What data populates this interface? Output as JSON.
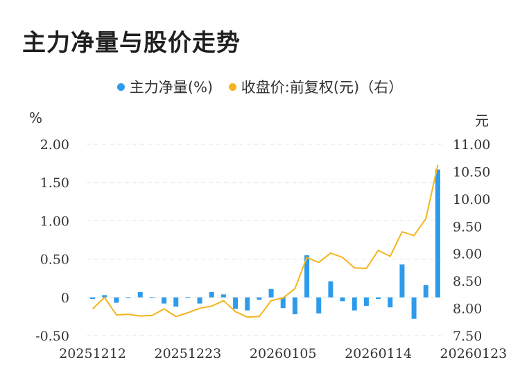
{
  "title": "主力净量与股价走势",
  "legend": {
    "left_label": "主力净量(%)",
    "right_label": "收盘价:前复权(元)（右）"
  },
  "units": {
    "left": "%",
    "right": "元"
  },
  "colors": {
    "bar": "#2e9bea",
    "line": "#f5b51b",
    "grid": "#e3e3e3"
  },
  "chart_data": {
    "type": "bar+line",
    "title": "主力净量与股价走势",
    "left_axis": {
      "unit": "%",
      "ticks": [
        "-0.50",
        "0",
        "0.50",
        "1.00",
        "1.50",
        "2.00"
      ],
      "ylim": [
        -0.5,
        2.0
      ]
    },
    "right_axis": {
      "unit": "元",
      "ticks": [
        "7.50",
        "8.00",
        "8.50",
        "9.00",
        "9.50",
        "10.00",
        "10.50",
        "11.00"
      ],
      "ylim": [
        7.5,
        11.0
      ]
    },
    "x_ticks": [
      "20251212",
      "20251223",
      "20260105",
      "20260114",
      "20260123"
    ],
    "x_tick_index": [
      0,
      8,
      16,
      24,
      32
    ],
    "grid": true,
    "legend_position": "top",
    "series": [
      {
        "name": "主力净量(%)",
        "kind": "bar",
        "axis": "left",
        "values": [
          -0.02,
          0.03,
          -0.07,
          -0.01,
          0.07,
          -0.01,
          -0.08,
          -0.12,
          -0.01,
          -0.08,
          0.07,
          0.04,
          -0.15,
          -0.17,
          -0.03,
          0.11,
          -0.14,
          -0.22,
          0.55,
          -0.21,
          0.21,
          -0.05,
          -0.17,
          -0.11,
          -0.02,
          -0.13,
          0.43,
          -0.28,
          0.16,
          1.67
        ]
      },
      {
        "name": "收盘价:前复权(元)（右）",
        "kind": "line",
        "axis": "right",
        "values": [
          7.99,
          8.2,
          7.88,
          7.89,
          7.86,
          7.87,
          7.99,
          7.85,
          7.92,
          8.0,
          8.04,
          8.14,
          7.94,
          7.84,
          7.85,
          8.14,
          8.19,
          8.36,
          8.93,
          8.84,
          9.01,
          8.93,
          8.74,
          8.73,
          9.06,
          8.95,
          9.4,
          9.33,
          9.64,
          10.62
        ]
      }
    ]
  }
}
